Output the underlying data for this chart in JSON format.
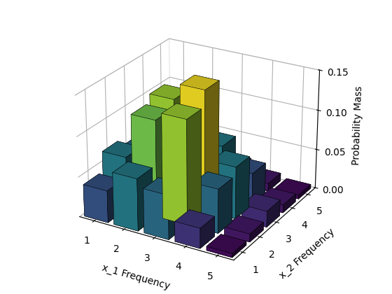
{
  "title": "",
  "xlabel": "x_1 Frequency",
  "ylabel": "x_2 Frequency",
  "zlabel": "Probability Mass",
  "zlim": [
    0,
    0.15
  ],
  "zticks": [
    0,
    0.05,
    0.1,
    0.15
  ],
  "colormap": "viridis",
  "pmf": [
    [
      0.04,
      0.065,
      0.055,
      0.025,
      0.005
    ],
    [
      0.065,
      0.12,
      0.13,
      0.055,
      0.01
    ],
    [
      0.055,
      0.13,
      0.15,
      0.065,
      0.02
    ],
    [
      0.025,
      0.055,
      0.065,
      0.04,
      0.01
    ],
    [
      0.005,
      0.01,
      0.02,
      0.01,
      0.005
    ]
  ],
  "x_vals": [
    1,
    2,
    3,
    4,
    5
  ],
  "y_vals": [
    1,
    2,
    3,
    4,
    5
  ],
  "bar_width": 0.8,
  "bar_depth": 0.8,
  "elev": 25,
  "azim": -60,
  "figsize": [
    5.6,
    4.2
  ],
  "dpi": 100
}
